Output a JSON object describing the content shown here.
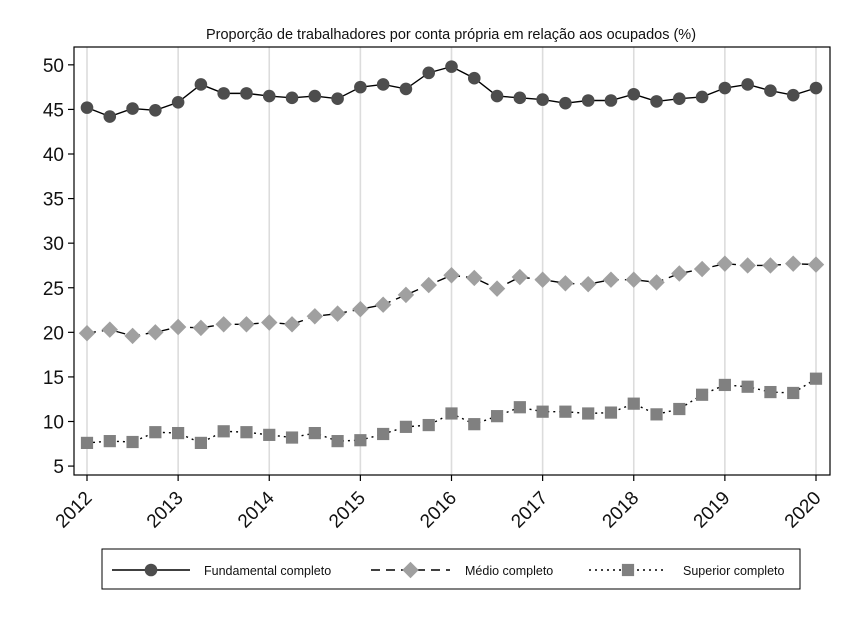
{
  "chart_data": {
    "type": "line",
    "title": "Proporção de trabalhadores por conta própria em relação aos ocupados (%)",
    "xlabel": "",
    "ylabel": "",
    "xlim": [
      2012,
      2020
    ],
    "ylim": [
      4,
      52
    ],
    "yticks": [
      5,
      10,
      15,
      20,
      25,
      30,
      35,
      40,
      45,
      50
    ],
    "xticks": [
      2012,
      2013,
      2014,
      2015,
      2016,
      2017,
      2018,
      2019,
      2020
    ],
    "xtick_labels": [
      "2012",
      "2013",
      "2014",
      "2015",
      "2016",
      "2017",
      "2018",
      "2019",
      "2020"
    ],
    "grid": "vertical at year ticks",
    "legend_position": "bottom",
    "x": [
      2012.0,
      2012.25,
      2012.5,
      2012.75,
      2013.0,
      2013.25,
      2013.5,
      2013.75,
      2014.0,
      2014.25,
      2014.5,
      2014.75,
      2015.0,
      2015.25,
      2015.5,
      2015.75,
      2016.0,
      2016.25,
      2016.5,
      2016.75,
      2017.0,
      2017.25,
      2017.5,
      2017.75,
      2018.0,
      2018.25,
      2018.5,
      2018.75,
      2019.0,
      2019.25,
      2019.5,
      2019.75,
      2020.0
    ],
    "series": [
      {
        "name": "Fundamental completo",
        "marker": "circle",
        "line": "solid",
        "color": "#4d4d4d",
        "values": [
          45.2,
          44.2,
          45.1,
          44.9,
          45.8,
          47.8,
          46.8,
          46.8,
          46.5,
          46.3,
          46.5,
          46.2,
          47.5,
          47.8,
          47.3,
          49.1,
          49.8,
          48.5,
          46.5,
          46.3,
          46.1,
          45.7,
          46.0,
          46.0,
          46.7,
          45.9,
          46.2,
          46.4,
          47.4,
          47.8,
          47.1,
          46.6,
          47.4
        ]
      },
      {
        "name": "Médio completo",
        "marker": "diamond",
        "line": "dashed",
        "color": "#a0a0a0",
        "values": [
          19.9,
          20.3,
          19.6,
          20.0,
          20.6,
          20.5,
          20.9,
          20.9,
          21.1,
          20.9,
          21.8,
          22.1,
          22.6,
          23.1,
          24.2,
          25.3,
          26.4,
          26.1,
          24.9,
          26.2,
          25.9,
          25.5,
          25.4,
          25.9,
          25.9,
          25.6,
          26.6,
          27.1,
          27.7,
          27.5,
          27.5,
          27.7,
          27.6
        ]
      },
      {
        "name": "Superior completo",
        "marker": "square",
        "line": "dotted",
        "color": "#808080",
        "values": [
          7.6,
          7.8,
          7.7,
          8.8,
          8.7,
          7.6,
          8.9,
          8.8,
          8.5,
          8.2,
          8.7,
          7.8,
          7.9,
          8.6,
          9.4,
          9.6,
          10.9,
          9.7,
          10.6,
          11.6,
          11.1,
          11.1,
          10.9,
          11.0,
          12.0,
          10.8,
          11.4,
          13.0,
          14.1,
          13.9,
          13.3,
          13.2,
          14.8
        ]
      }
    ]
  }
}
